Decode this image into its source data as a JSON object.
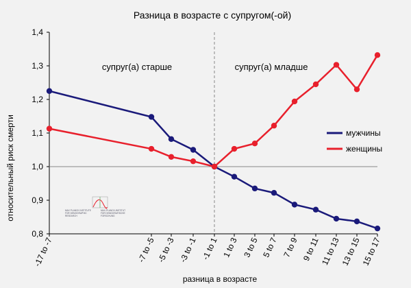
{
  "chart_data": {
    "type": "line",
    "title": "Разница в возрасте с супругом(-ой)",
    "xlabel": "разница в возрасте",
    "ylabel": "относительный риск смерти",
    "ylim": [
      0.8,
      1.4
    ],
    "yticks": [
      "0,8",
      "0,9",
      "1,0",
      "1,1",
      "1,2",
      "1,3",
      "1,4"
    ],
    "categories": [
      "-17 to -7",
      "-7 to -5",
      "-5 to -3",
      "-3 to -1",
      "-1 to 1",
      "1 to 3",
      "3 to 5",
      "5 to 7",
      "7 to 9",
      "9 to 11",
      "11 to 13",
      "13 to 15",
      "15 to 17"
    ],
    "series": [
      {
        "name": "мужчины",
        "color": "#1a1a7a",
        "values": [
          1.225,
          1.148,
          1.082,
          1.05,
          1.0,
          0.97,
          0.935,
          0.922,
          0.887,
          0.872,
          0.845,
          0.837,
          0.816
        ]
      },
      {
        "name": "женщины",
        "color": "#e8202c",
        "values": [
          1.113,
          1.053,
          1.029,
          1.016,
          1.0,
          1.053,
          1.069,
          1.122,
          1.194,
          1.245,
          1.303,
          1.23,
          1.332
        ]
      }
    ],
    "annotations": {
      "left": "супруг(а) старше",
      "right": "супруг(а) младше"
    },
    "reference_line_y": 1.0,
    "legend_position": "right"
  },
  "logo": {
    "left_text": [
      "MAX PLANCK INSTITUTE",
      "FOR DEMOGRAPHIC",
      "RESEARCH"
    ],
    "right_text": [
      "MAX-PLANCK-INSTITUT",
      "FÜR DEMOGRAFISCHE",
      "FORSCHUNG"
    ]
  }
}
